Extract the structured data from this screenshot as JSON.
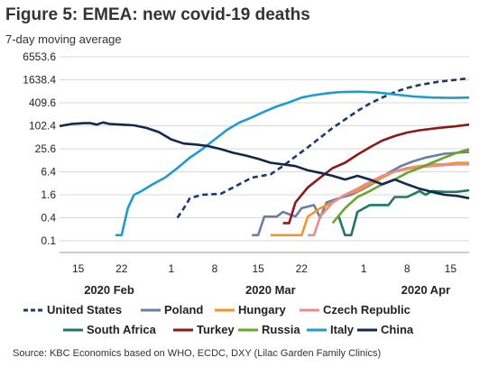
{
  "chart_data": {
    "type": "line",
    "title": "Figure 5: EMEA: new covid-19 deaths",
    "subtitle": "7-day moving average",
    "source": "Source: KBC Economics based on WHO, ECDC, DXY (Lilac Garden Family Clinics)",
    "y_scale": "log",
    "y_ticks": [
      "6553.6",
      "1638.4",
      "409.6",
      "102.4",
      "25.6",
      "6.4",
      "1.6",
      "0.4",
      "0.1"
    ],
    "y_tick_values": [
      6553.6,
      1638.4,
      409.6,
      102.4,
      25.6,
      6.4,
      1.6,
      0.4,
      0.1
    ],
    "ylim": [
      0.1,
      6553.6
    ],
    "x_range": [
      "2020-02-12",
      "2020-04-18"
    ],
    "x_ticks": [
      {
        "date": "2020-02-15",
        "label": "15"
      },
      {
        "date": "2020-02-22",
        "label": "22"
      },
      {
        "date": "2020-03-01",
        "label": "1"
      },
      {
        "date": "2020-03-08",
        "label": "8"
      },
      {
        "date": "2020-03-15",
        "label": "15"
      },
      {
        "date": "2020-03-22",
        "label": "22"
      },
      {
        "date": "2020-04-01",
        "label": "1"
      },
      {
        "date": "2020-04-08",
        "label": "8"
      },
      {
        "date": "2020-04-15",
        "label": "15"
      }
    ],
    "month_labels": [
      {
        "date": "2020-02-20",
        "label": "2020 Feb"
      },
      {
        "date": "2020-03-17",
        "label": "2020 Mar"
      },
      {
        "date": "2020-04-11",
        "label": "2020 Apr"
      }
    ],
    "legend_position": "bottom",
    "series": [
      {
        "name": "United States",
        "color": "#1c3a6b",
        "dash": true,
        "points": [
          [
            "2020-03-02",
            0.4
          ],
          [
            "2020-03-03",
            0.7
          ],
          [
            "2020-03-04",
            1.3
          ],
          [
            "2020-03-06",
            1.6
          ],
          [
            "2020-03-09",
            1.7
          ],
          [
            "2020-03-11",
            2.5
          ],
          [
            "2020-03-14",
            4.5
          ],
          [
            "2020-03-17",
            5.5
          ],
          [
            "2020-03-19",
            9
          ],
          [
            "2020-03-21",
            16
          ],
          [
            "2020-03-23",
            28
          ],
          [
            "2020-03-25",
            50
          ],
          [
            "2020-03-27",
            90
          ],
          [
            "2020-03-29",
            150
          ],
          [
            "2020-03-31",
            250
          ],
          [
            "2020-04-02",
            390
          ],
          [
            "2020-04-04",
            560
          ],
          [
            "2020-04-06",
            780
          ],
          [
            "2020-04-08",
            1000
          ],
          [
            "2020-04-10",
            1200
          ],
          [
            "2020-04-13",
            1450
          ],
          [
            "2020-04-16",
            1650
          ],
          [
            "2020-04-18",
            1800
          ]
        ]
      },
      {
        "name": "Poland",
        "color": "#6b7fa3",
        "dash": false,
        "points": [
          [
            "2020-03-14",
            0.14
          ],
          [
            "2020-03-15",
            0.14
          ],
          [
            "2020-03-16",
            0.43
          ],
          [
            "2020-03-18",
            0.43
          ],
          [
            "2020-03-19",
            0.57
          ],
          [
            "2020-03-21",
            0.43
          ],
          [
            "2020-03-22",
            0.71
          ],
          [
            "2020-03-24",
            0.86
          ],
          [
            "2020-03-25",
            0.4
          ],
          [
            "2020-03-26",
            1.0
          ],
          [
            "2020-03-28",
            1.3
          ],
          [
            "2020-03-30",
            1.6
          ],
          [
            "2020-04-01",
            2.3
          ],
          [
            "2020-04-03",
            3.5
          ],
          [
            "2020-04-05",
            6
          ],
          [
            "2020-04-07",
            9
          ],
          [
            "2020-04-09",
            12
          ],
          [
            "2020-04-11",
            15
          ],
          [
            "2020-04-14",
            19
          ],
          [
            "2020-04-16",
            20
          ],
          [
            "2020-04-18",
            21
          ]
        ]
      },
      {
        "name": "Hungary",
        "color": "#f0962e",
        "dash": false,
        "points": [
          [
            "2020-03-17",
            0.14
          ],
          [
            "2020-03-22",
            0.14
          ],
          [
            "2020-03-23",
            0.43
          ],
          [
            "2020-03-25",
            0.71
          ],
          [
            "2020-03-27",
            1.0
          ],
          [
            "2020-03-29",
            1.6
          ],
          [
            "2020-03-31",
            2.0
          ],
          [
            "2020-04-02",
            3.0
          ],
          [
            "2020-04-04",
            4.5
          ],
          [
            "2020-04-06",
            6.5
          ],
          [
            "2020-04-08",
            8
          ],
          [
            "2020-04-10",
            9
          ],
          [
            "2020-04-12",
            10
          ],
          [
            "2020-04-14",
            10
          ],
          [
            "2020-04-16",
            11
          ],
          [
            "2020-04-18",
            11
          ]
        ]
      },
      {
        "name": "Czech Republic",
        "color": "#e88c8c",
        "dash": false,
        "points": [
          [
            "2020-03-23",
            0.14
          ],
          [
            "2020-03-24",
            0.14
          ],
          [
            "2020-03-25",
            0.43
          ],
          [
            "2020-03-27",
            1.0
          ],
          [
            "2020-03-29",
            1.6
          ],
          [
            "2020-03-31",
            2.3
          ],
          [
            "2020-04-02",
            3.5
          ],
          [
            "2020-04-04",
            5
          ],
          [
            "2020-04-06",
            6.5
          ],
          [
            "2020-04-08",
            7.5
          ],
          [
            "2020-04-10",
            8.5
          ],
          [
            "2020-04-12",
            9
          ],
          [
            "2020-04-14",
            9.5
          ],
          [
            "2020-04-16",
            10
          ],
          [
            "2020-04-18",
            10
          ]
        ]
      },
      {
        "name": "South Africa",
        "color": "#1f7a5a",
        "dash": false,
        "points": [
          [
            "2020-03-28",
            0.43
          ],
          [
            "2020-03-29",
            0.14
          ],
          [
            "2020-03-30",
            0.14
          ],
          [
            "2020-03-31",
            0.57
          ],
          [
            "2020-04-02",
            0.86
          ],
          [
            "2020-04-05",
            0.86
          ],
          [
            "2020-04-06",
            1.4
          ],
          [
            "2020-04-08",
            1.4
          ],
          [
            "2020-04-10",
            2.0
          ],
          [
            "2020-04-11",
            1.6
          ],
          [
            "2020-04-12",
            2.0
          ],
          [
            "2020-04-14",
            1.9
          ],
          [
            "2020-04-16",
            1.9
          ],
          [
            "2020-04-18",
            2.1
          ]
        ]
      },
      {
        "name": "Turkey",
        "color": "#8b1a1a",
        "dash": false,
        "points": [
          [
            "2020-03-19",
            0.29
          ],
          [
            "2020-03-20",
            0.29
          ],
          [
            "2020-03-21",
            1.0
          ],
          [
            "2020-03-23",
            2.5
          ],
          [
            "2020-03-25",
            4.5
          ],
          [
            "2020-03-27",
            8
          ],
          [
            "2020-03-29",
            11
          ],
          [
            "2020-03-31",
            18
          ],
          [
            "2020-04-02",
            28
          ],
          [
            "2020-04-04",
            42
          ],
          [
            "2020-04-06",
            55
          ],
          [
            "2020-04-08",
            68
          ],
          [
            "2020-04-10",
            78
          ],
          [
            "2020-04-13",
            90
          ],
          [
            "2020-04-16",
            100
          ],
          [
            "2020-04-18",
            110
          ]
        ]
      },
      {
        "name": "Russia",
        "color": "#6aa52b",
        "dash": false,
        "points": [
          [
            "2020-03-27",
            0.29
          ],
          [
            "2020-03-29",
            0.71
          ],
          [
            "2020-03-31",
            1.4
          ],
          [
            "2020-04-02",
            2.0
          ],
          [
            "2020-04-04",
            3.0
          ],
          [
            "2020-04-06",
            4.0
          ],
          [
            "2020-04-08",
            6
          ],
          [
            "2020-04-10",
            8
          ],
          [
            "2020-04-12",
            11
          ],
          [
            "2020-04-14",
            15
          ],
          [
            "2020-04-16",
            20
          ],
          [
            "2020-04-18",
            25
          ]
        ]
      },
      {
        "name": "Italy",
        "color": "#1f9bcf",
        "dash": false,
        "points": [
          [
            "2020-02-21",
            0.14
          ],
          [
            "2020-02-22",
            0.14
          ],
          [
            "2020-02-23",
            0.71
          ],
          [
            "2020-02-24",
            1.6
          ],
          [
            "2020-02-25",
            1.9
          ],
          [
            "2020-02-27",
            3
          ],
          [
            "2020-02-29",
            4.5
          ],
          [
            "2020-03-02",
            8
          ],
          [
            "2020-03-04",
            15
          ],
          [
            "2020-03-06",
            25
          ],
          [
            "2020-03-08",
            45
          ],
          [
            "2020-03-10",
            80
          ],
          [
            "2020-03-12",
            125
          ],
          [
            "2020-03-14",
            170
          ],
          [
            "2020-03-16",
            240
          ],
          [
            "2020-03-18",
            330
          ],
          [
            "2020-03-20",
            420
          ],
          [
            "2020-03-22",
            560
          ],
          [
            "2020-03-24",
            650
          ],
          [
            "2020-03-26",
            720
          ],
          [
            "2020-03-28",
            780
          ],
          [
            "2020-03-31",
            800
          ],
          [
            "2020-04-03",
            770
          ],
          [
            "2020-04-06",
            680
          ],
          [
            "2020-04-09",
            600
          ],
          [
            "2020-04-12",
            560
          ],
          [
            "2020-04-15",
            550
          ],
          [
            "2020-04-18",
            560
          ]
        ]
      },
      {
        "name": "China",
        "color": "#13294b",
        "dash": false,
        "points": [
          [
            "2020-02-12",
            100
          ],
          [
            "2020-02-14",
            115
          ],
          [
            "2020-02-16",
            120
          ],
          [
            "2020-02-17",
            120
          ],
          [
            "2020-02-18",
            110
          ],
          [
            "2020-02-19",
            125
          ],
          [
            "2020-02-20",
            115
          ],
          [
            "2020-02-22",
            110
          ],
          [
            "2020-02-24",
            105
          ],
          [
            "2020-02-26",
            90
          ],
          [
            "2020-02-28",
            70
          ],
          [
            "2020-03-01",
            45
          ],
          [
            "2020-03-03",
            35
          ],
          [
            "2020-03-05",
            33
          ],
          [
            "2020-03-07",
            30
          ],
          [
            "2020-03-09",
            25
          ],
          [
            "2020-03-11",
            20
          ],
          [
            "2020-03-13",
            17
          ],
          [
            "2020-03-15",
            14
          ],
          [
            "2020-03-17",
            11
          ],
          [
            "2020-03-19",
            10
          ],
          [
            "2020-03-21",
            9
          ],
          [
            "2020-03-23",
            7
          ],
          [
            "2020-03-25",
            6
          ],
          [
            "2020-03-27",
            5
          ],
          [
            "2020-03-29",
            4
          ],
          [
            "2020-03-31",
            5
          ],
          [
            "2020-04-02",
            4
          ],
          [
            "2020-04-04",
            3
          ],
          [
            "2020-04-06",
            4
          ],
          [
            "2020-04-08",
            3
          ],
          [
            "2020-04-10",
            2.3
          ],
          [
            "2020-04-12",
            1.9
          ],
          [
            "2020-04-14",
            1.6
          ],
          [
            "2020-04-16",
            1.5
          ],
          [
            "2020-04-18",
            1.3
          ]
        ]
      }
    ]
  }
}
